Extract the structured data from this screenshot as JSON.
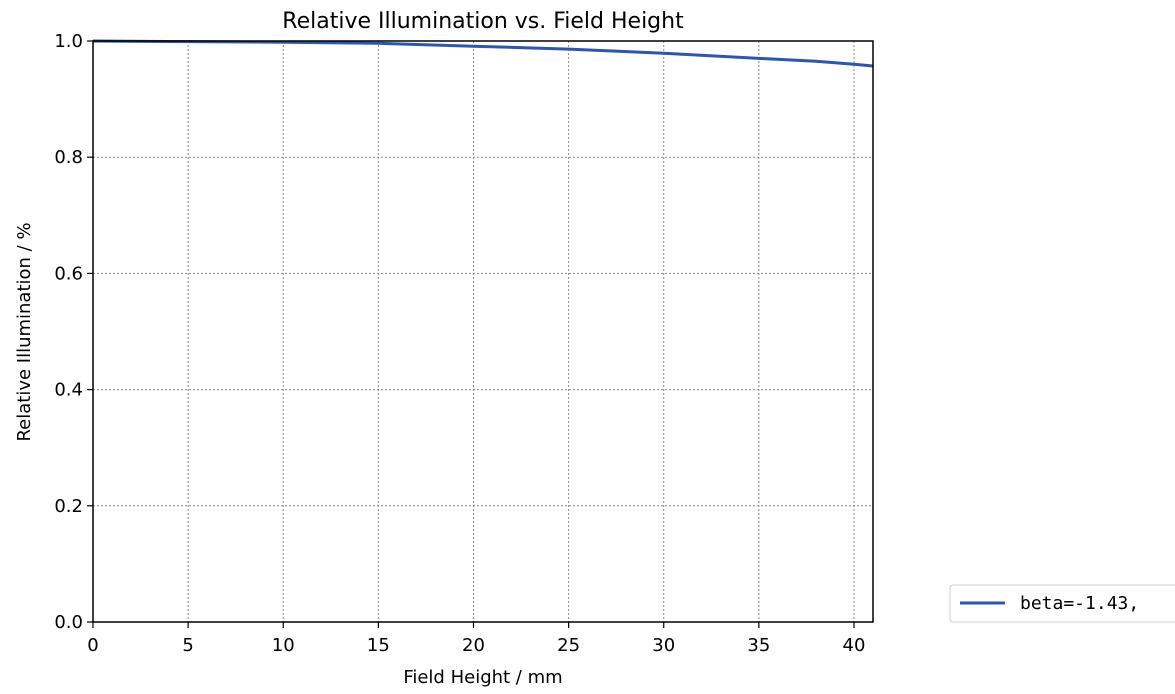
{
  "chart_data": {
    "type": "line",
    "title": "Relative Illumination vs. Field Height",
    "xlabel": "Field Height / mm",
    "ylabel": "Relative Illumination / %",
    "xlim": [
      0,
      41
    ],
    "ylim": [
      0.0,
      1.0
    ],
    "xticks": [
      0,
      5,
      10,
      15,
      20,
      25,
      30,
      35,
      40
    ],
    "yticks": [
      0.0,
      0.2,
      0.4,
      0.6,
      0.8,
      1.0
    ],
    "xtick_labels": [
      "0",
      "5",
      "10",
      "15",
      "20",
      "25",
      "30",
      "35",
      "40"
    ],
    "ytick_labels": [
      "0.0",
      "0.2",
      "0.4",
      "0.6",
      "0.8",
      "1.0"
    ],
    "grid": true,
    "legend_position": "outside-right",
    "series": [
      {
        "name": "beta=-1.43,",
        "color": "#2d55b3",
        "x": [
          0,
          5,
          10,
          15,
          20,
          25,
          30,
          35,
          38,
          40,
          41
        ],
        "y": [
          1.0,
          0.999,
          0.998,
          0.996,
          0.991,
          0.986,
          0.979,
          0.97,
          0.965,
          0.96,
          0.957
        ]
      }
    ]
  }
}
